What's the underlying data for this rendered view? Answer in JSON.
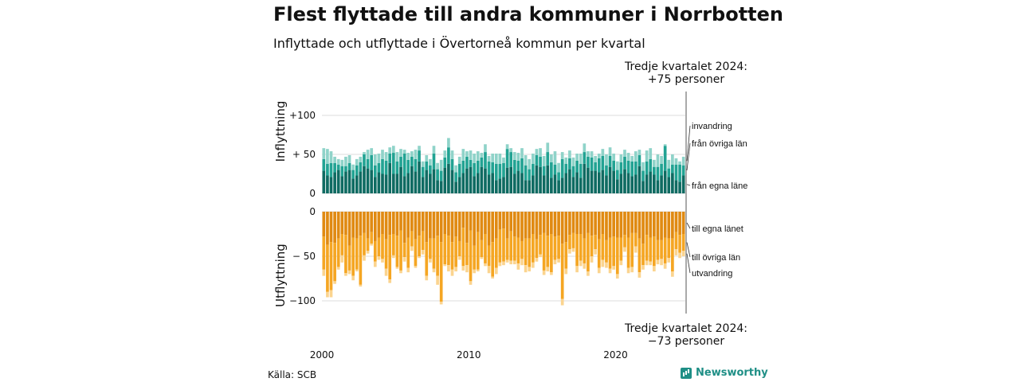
{
  "header": {
    "title": "Flest flyttade till andra kommuner i Norrbotten",
    "subtitle": "Inflyttade och utflyttade i Övertorneå kommun per kvartal"
  },
  "annotations": {
    "top_line1": "Tredje kvartalet 2024:",
    "top_line2": "+75 personer",
    "bottom_line1": "Tredje kvartalet 2024:",
    "bottom_line2": "−73 personer"
  },
  "footer": {
    "source": "Källa: SCB",
    "brand": "Newsworthy"
  },
  "colors": {
    "in_own": "#0f6b62",
    "in_other": "#22a393",
    "in_immig": "#8fd3c9",
    "out_own": "#e08a12",
    "out_other": "#f5a623",
    "out_emig": "#fbd48f",
    "grid": "#dddddd"
  },
  "chart_data": {
    "type": "bar",
    "stacked": true,
    "x_start": "2000 Q1",
    "x_end": "2024 Q3",
    "xticks": [
      "2000",
      "2010",
      "2020"
    ],
    "panels": [
      {
        "ylabel": "Inflyttning",
        "yticks": [
          {
            "value": 0,
            "label": "0"
          },
          {
            "value": 50,
            "label": "+ 50"
          },
          {
            "value": 100,
            "label": "+100"
          }
        ],
        "ylim": [
          0,
          110
        ],
        "series": [
          {
            "name": "från egna läne",
            "values": [
              29,
              23,
              21,
              27,
              30,
              22,
              28,
              30,
              19,
              23,
              28,
              35,
              32,
              30,
              21,
              27,
              25,
              24,
              39,
              25,
              25,
              34,
              22,
              26,
              35,
              28,
              41,
              21,
              30,
              25,
              31,
              17,
              16,
              33,
              38,
              30,
              15,
              21,
              26,
              32,
              34,
              22,
              26,
              34,
              32,
              24,
              26,
              17,
              19,
              21,
              33,
              34,
              25,
              29,
              26,
              17,
              17,
              23,
              36,
              34,
              23,
              36,
              20,
              24,
              17,
              20,
              26,
              31,
              21,
              27,
              20,
              38,
              33,
              29,
              29,
              27,
              30,
              23,
              34,
              29,
              18,
              25,
              31,
              26,
              22,
              24,
              35,
              16,
              24,
              28,
              24,
              17,
              23,
              29,
              21,
              26,
              17,
              15,
              23
            ]
          },
          {
            "name": "från övriga län",
            "values": [
              15,
              15,
              18,
              12,
              7,
              13,
              7,
              9,
              11,
              13,
              12,
              15,
              12,
              19,
              15,
              12,
              19,
              18,
              12,
              27,
              16,
              13,
              29,
              17,
              12,
              16,
              14,
              13,
              11,
              11,
              20,
              14,
              13,
              13,
              21,
              14,
              12,
              17,
              16,
              15,
              9,
              17,
              16,
              12,
              21,
              17,
              14,
              21,
              19,
              18,
              24,
              19,
              18,
              13,
              19,
              19,
              14,
              15,
              13,
              13,
              12,
              17,
              20,
              13,
              10,
              24,
              12,
              14,
              14,
              15,
              18,
              15,
              14,
              17,
              11,
              18,
              18,
              13,
              14,
              13,
              12,
              15,
              16,
              16,
              19,
              17,
              14,
              13,
              17,
              16,
              10,
              17,
              15,
              32,
              11,
              11,
              20,
              22,
              13
            ]
          },
          {
            "name": "invandring",
            "values": [
              14,
              19,
              15,
              8,
              7,
              8,
              12,
              10,
              7,
              8,
              7,
              3,
              12,
              9,
              14,
              12,
              12,
              11,
              8,
              9,
              12,
              10,
              5,
              9,
              7,
              12,
              6,
              7,
              8,
              8,
              10,
              8,
              14,
              9,
              12,
              11,
              9,
              9,
              15,
              7,
              12,
              12,
              12,
              6,
              10,
              7,
              11,
              13,
              13,
              7,
              6,
              5,
              10,
              10,
              13,
              13,
              13,
              13,
              8,
              11,
              13,
              12,
              10,
              17,
              12,
              9,
              8,
              10,
              11,
              9,
              13,
              11,
              7,
              8,
              8,
              6,
              9,
              14,
              11,
              9,
              11,
              10,
              9,
              10,
              7,
              13,
              7,
              11,
              14,
              14,
              9,
              16,
              10,
              2,
              11,
              13,
              8,
              4,
              11
            ]
          }
        ]
      },
      {
        "ylabel": "Utflyttning",
        "yticks": [
          {
            "value": 0,
            "label": "0"
          },
          {
            "value": -50,
            "label": "− 50"
          },
          {
            "value": -100,
            "label": "−100"
          }
        ],
        "ylim": [
          -115,
          0
        ],
        "series": [
          {
            "name": "till egna länet",
            "values": [
              -28,
              -37,
              -34,
              -35,
              -30,
              -25,
              -26,
              -38,
              -29,
              -30,
              -27,
              -24,
              -30,
              -23,
              -33,
              -29,
              -25,
              -31,
              -26,
              -25,
              -27,
              -21,
              -35,
              -29,
              -22,
              -31,
              -27,
              -22,
              -34,
              -30,
              -30,
              -27,
              -34,
              -25,
              -27,
              -34,
              -28,
              -33,
              -18,
              -35,
              -21,
              -38,
              -23,
              -32,
              -25,
              -38,
              -34,
              -30,
              -20,
              -19,
              -30,
              -22,
              -28,
              -29,
              -33,
              -30,
              -30,
              -25,
              -31,
              -26,
              -24,
              -27,
              -25,
              -28,
              -27,
              -36,
              -34,
              -26,
              -24,
              -25,
              -25,
              -30,
              -24,
              -27,
              -26,
              -31,
              -25,
              -32,
              -29,
              -28,
              -29,
              -29,
              -26,
              -29,
              -24,
              -24,
              -30,
              -36,
              -26,
              -29,
              -28,
              -32,
              -32,
              -29,
              -30,
              -30,
              -23,
              -26,
              -25
            ]
          },
          {
            "name": "till övriga län",
            "values": [
              -37,
              -53,
              -54,
              -43,
              -32,
              -24,
              -43,
              -28,
              -43,
              -35,
              -55,
              -25,
              -14,
              -13,
              -23,
              -21,
              -28,
              -33,
              -50,
              -24,
              -35,
              -45,
              -16,
              -34,
              -17,
              -30,
              -23,
              -21,
              -38,
              -23,
              -34,
              -45,
              -67,
              -34,
              -33,
              -31,
              -34,
              -17,
              -43,
              -25,
              -57,
              -27,
              -42,
              -19,
              -33,
              -23,
              -39,
              -33,
              -37,
              -37,
              -24,
              -33,
              -27,
              -29,
              -20,
              -30,
              -32,
              -32,
              -21,
              -22,
              -42,
              -35,
              -43,
              -26,
              -26,
              -62,
              -30,
              -16,
              -17,
              -36,
              -30,
              -28,
              -43,
              -23,
              -16,
              -32,
              -29,
              -25,
              -35,
              -33,
              -41,
              -26,
              -14,
              -34,
              -38,
              -15,
              -38,
              -24,
              -29,
              -27,
              -33,
              -22,
              -21,
              -29,
              -22,
              -37,
              -19,
              -20,
              -19
            ]
          },
          {
            "name": "utvandring",
            "values": [
              -7,
              -6,
              -8,
              -3,
              -3,
              -8,
              -3,
              -4,
              -5,
              -2,
              -2,
              -6,
              -3,
              -2,
              -6,
              -4,
              -4,
              -8,
              -4,
              -3,
              -2,
              -3,
              -5,
              -5,
              -5,
              -2,
              -2,
              -5,
              -5,
              -4,
              -4,
              -10,
              -3,
              -2,
              -7,
              -7,
              -5,
              -4,
              -5,
              -8,
              -4,
              -4,
              -2,
              -2,
              -3,
              -8,
              -2,
              -7,
              -4,
              -4,
              -3,
              -4,
              -4,
              -7,
              -7,
              -8,
              -5,
              -6,
              -4,
              -3,
              -5,
              -5,
              -3,
              -5,
              -4,
              -7,
              -6,
              -5,
              -4,
              -7,
              -6,
              -6,
              -5,
              -7,
              -6,
              -6,
              -8,
              -6,
              -5,
              -4,
              -5,
              -5,
              -5,
              -6,
              -6,
              -7,
              -6,
              -5,
              -5,
              -4,
              -6,
              -5,
              -7,
              -6,
              -5,
              -6,
              -7,
              -6,
              -6
            ]
          }
        ]
      }
    ]
  }
}
